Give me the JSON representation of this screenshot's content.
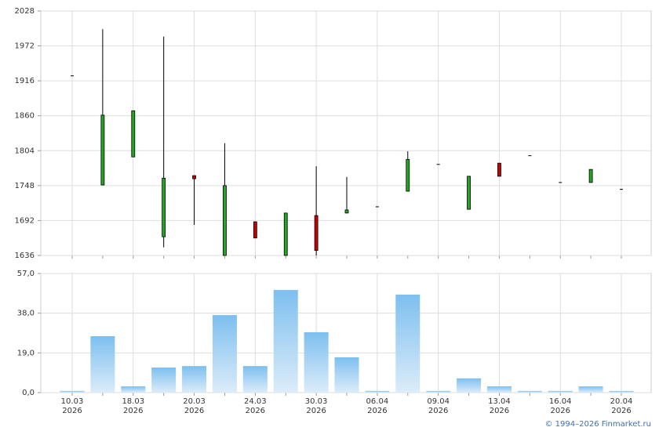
{
  "chart_data": [
    {
      "type": "candlestick",
      "open": [
        1924,
        1749,
        1794,
        1666,
        1764,
        1636,
        1690,
        1636,
        1700,
        1704,
        1714,
        1739,
        1782,
        1710,
        1784,
        1796,
        1753,
        1753,
        1742
      ],
      "high": [
        1924,
        1999,
        1868,
        1987,
        1764,
        1816,
        1690,
        1704,
        1779,
        1762,
        1714,
        1803,
        1782,
        1763,
        1784,
        1796,
        1753,
        1774,
        1742
      ],
      "low": [
        1924,
        1749,
        1794,
        1649,
        1685,
        1636,
        1664,
        1636,
        1636,
        1704,
        1714,
        1739,
        1782,
        1710,
        1763,
        1796,
        1753,
        1753,
        1742
      ],
      "close": [
        1924,
        1861,
        1868,
        1760,
        1759,
        1748,
        1664,
        1704,
        1644,
        1709,
        1714,
        1790,
        1782,
        1763,
        1763,
        1796,
        1753,
        1774,
        1742
      ],
      "up_color": "#22a822",
      "down_color": "#cc0000",
      "ylim": [
        1636,
        2028
      ],
      "yticks": [
        1636,
        1692,
        1748,
        1804,
        1860,
        1916,
        1972,
        2028
      ],
      "grid": true
    },
    {
      "type": "bar",
      "categories": [
        "10.03\n2026",
        null,
        "18.03\n2026",
        null,
        "20.03\n2026",
        null,
        "24.03\n2026",
        null,
        "30.03\n2026",
        null,
        "06.04\n2026",
        null,
        "09.04\n2026",
        null,
        "13.04\n2026",
        null,
        "16.04\n2026",
        null,
        "20.04\n2026"
      ],
      "values": [
        0.8,
        27.0,
        3.0,
        12.0,
        12.7,
        37.1,
        12.7,
        49.1,
        28.9,
        16.9,
        0.8,
        46.9,
        0.8,
        6.8,
        3.0,
        0.8,
        0.8,
        3.0,
        0.8
      ],
      "color": "#7dbfef",
      "ylim": [
        0,
        57
      ],
      "yticks": [
        {
          "value": 0,
          "label": "0,0"
        },
        {
          "value": 19,
          "label": "19,0"
        },
        {
          "value": 38,
          "label": "38,0"
        },
        {
          "value": 57,
          "label": "57,0"
        }
      ],
      "grid": true
    }
  ],
  "footer": "© 1994–2026 Finmarket.ru"
}
